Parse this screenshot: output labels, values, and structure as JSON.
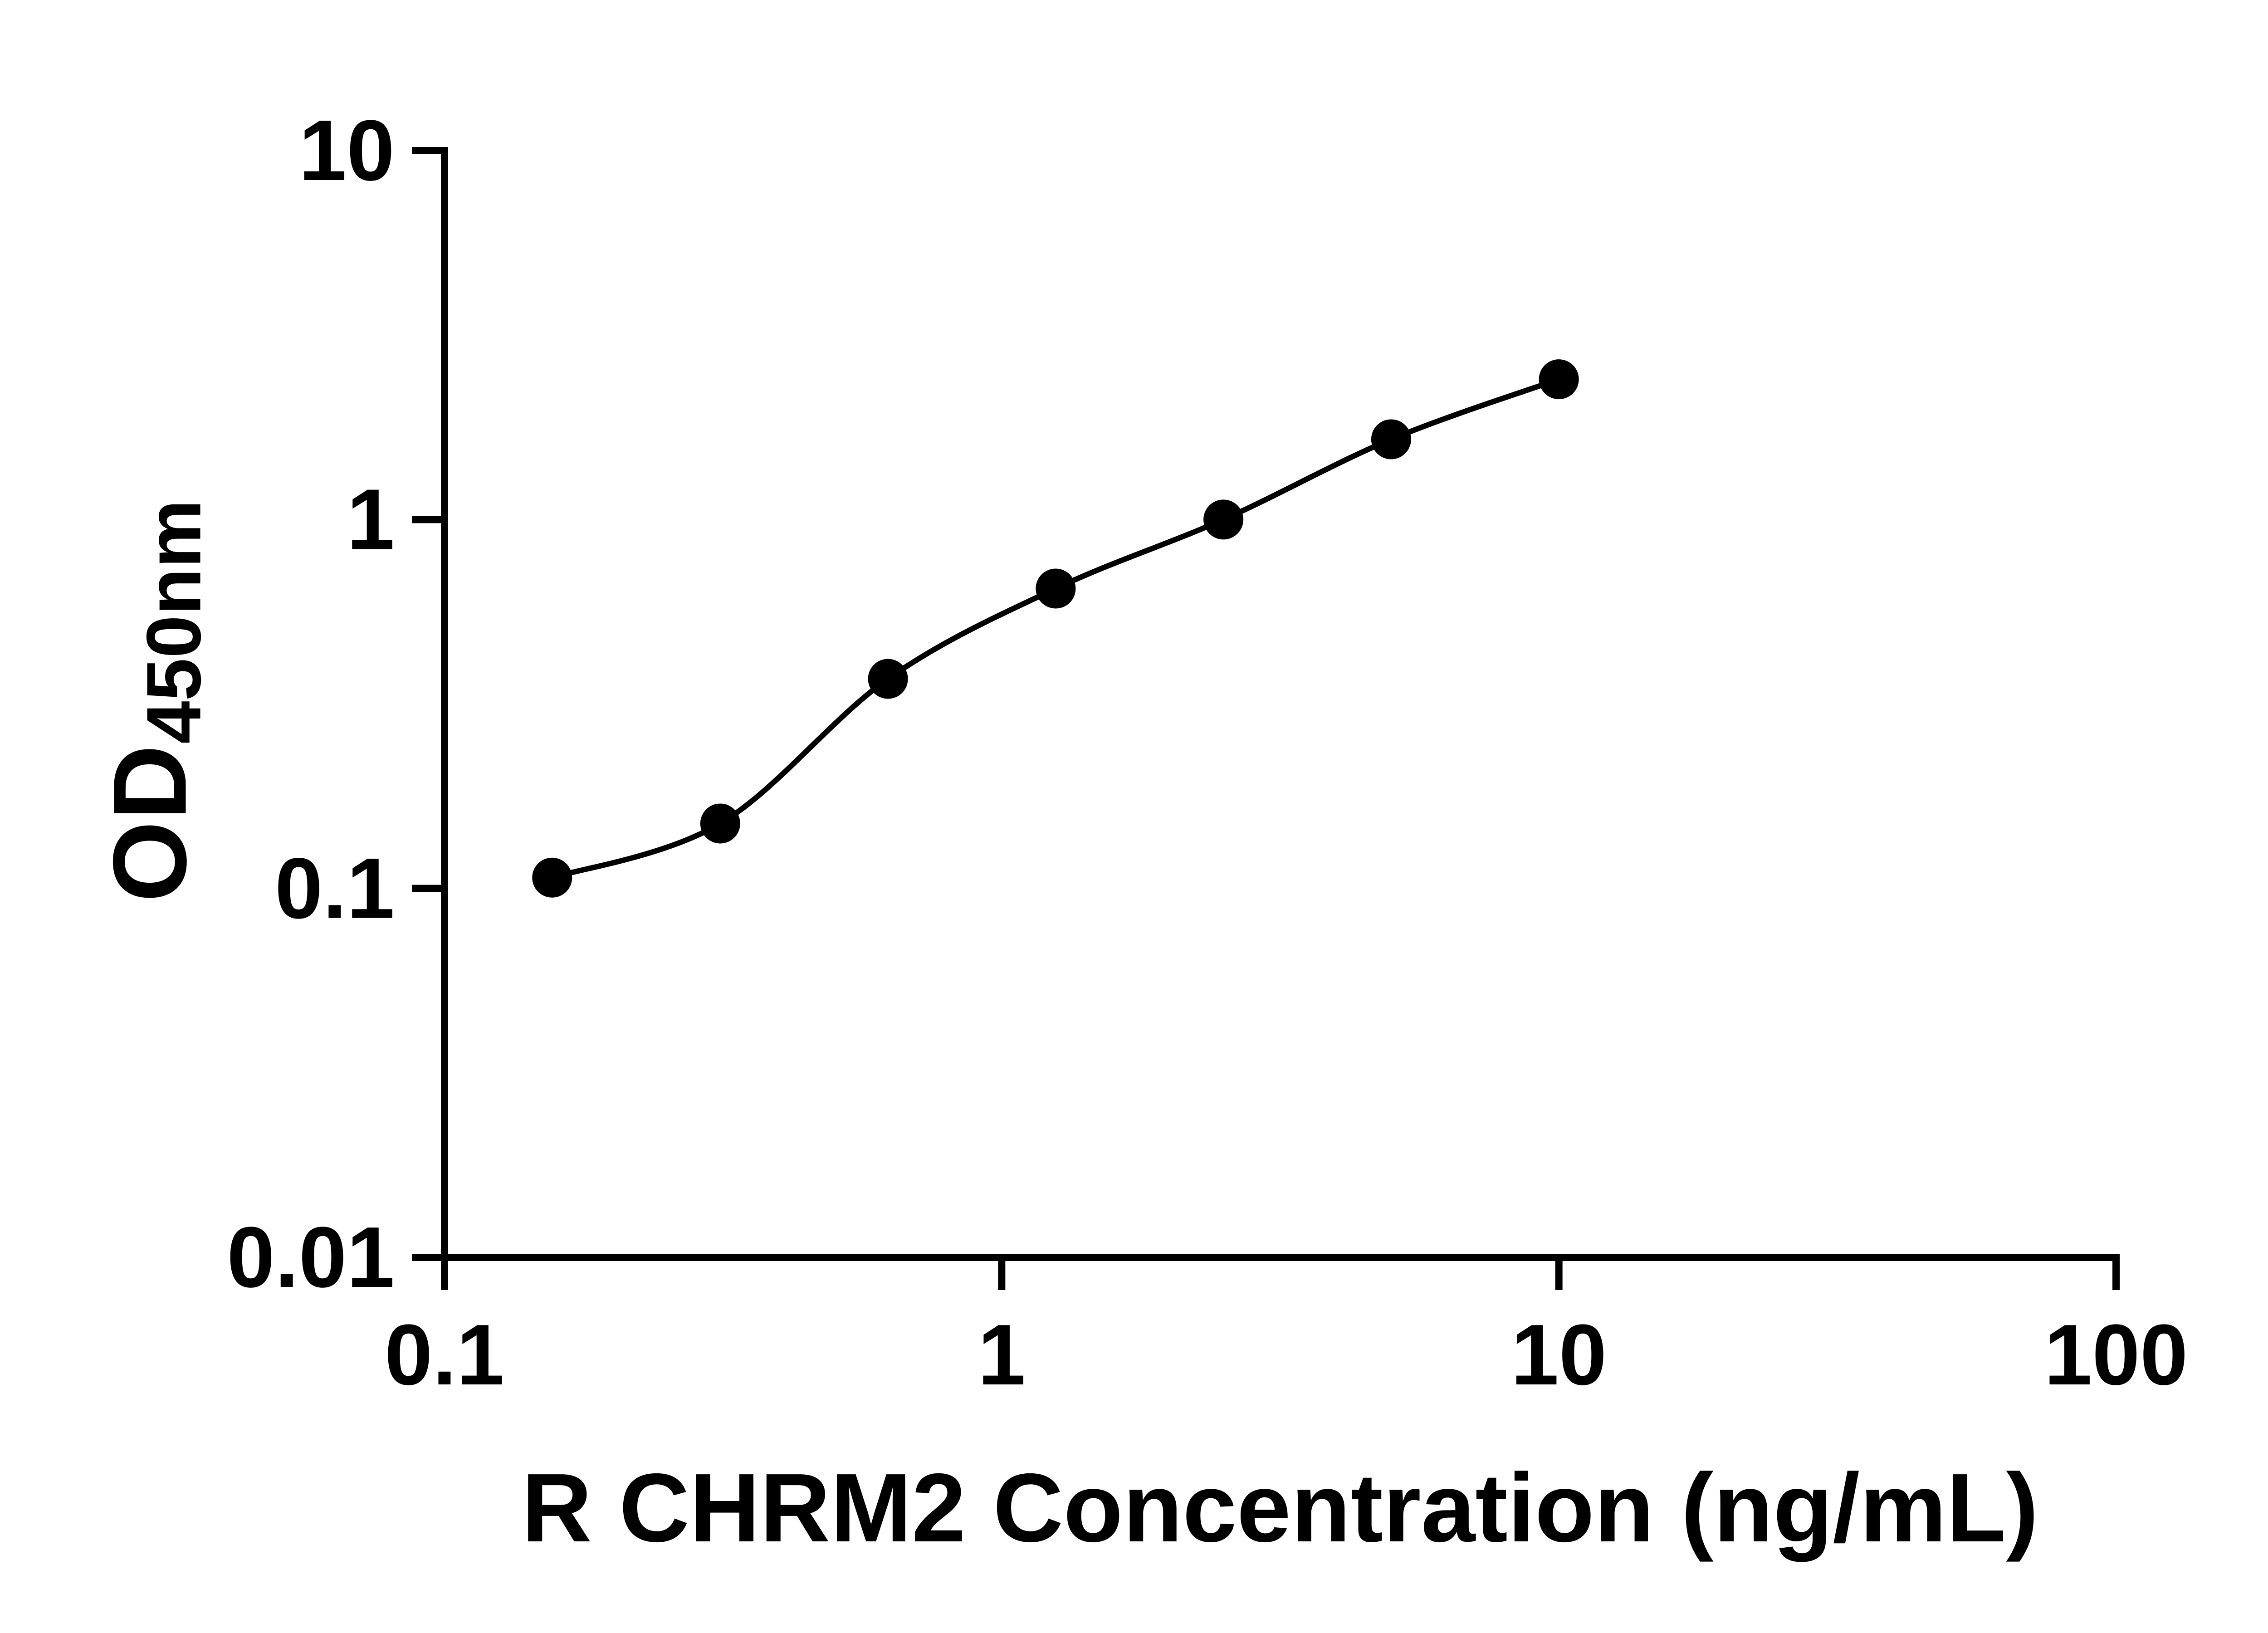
{
  "figure": {
    "background_color": "#ffffff",
    "axis_color": "#000000",
    "curve_color": "#000000",
    "marker_color": "#000000"
  },
  "chart_data": {
    "type": "scatter",
    "title": "",
    "xlabel": "R CHRM2 Concentration (ng/mL)",
    "ylabel": "OD450nm",
    "ylabel_base": "OD",
    "ylabel_subscript": "450nm",
    "x_scale": "log10",
    "y_scale": "log10",
    "xlim": [
      0.1,
      100
    ],
    "ylim": [
      0.01,
      10
    ],
    "x_tick_labels": [
      "0.1",
      "1",
      "10",
      "100"
    ],
    "y_tick_labels": [
      "0.01",
      "0.1",
      "1",
      "10"
    ],
    "grid": false,
    "legend": "none",
    "series": [
      {
        "marker": "filled-circle",
        "line": "smooth-fit",
        "x": [
          0.156,
          0.3125,
          0.625,
          1.25,
          2.5,
          5,
          10
        ],
        "y": [
          0.107,
          0.15,
          0.37,
          0.65,
          1.0,
          1.65,
          2.4
        ]
      }
    ]
  }
}
